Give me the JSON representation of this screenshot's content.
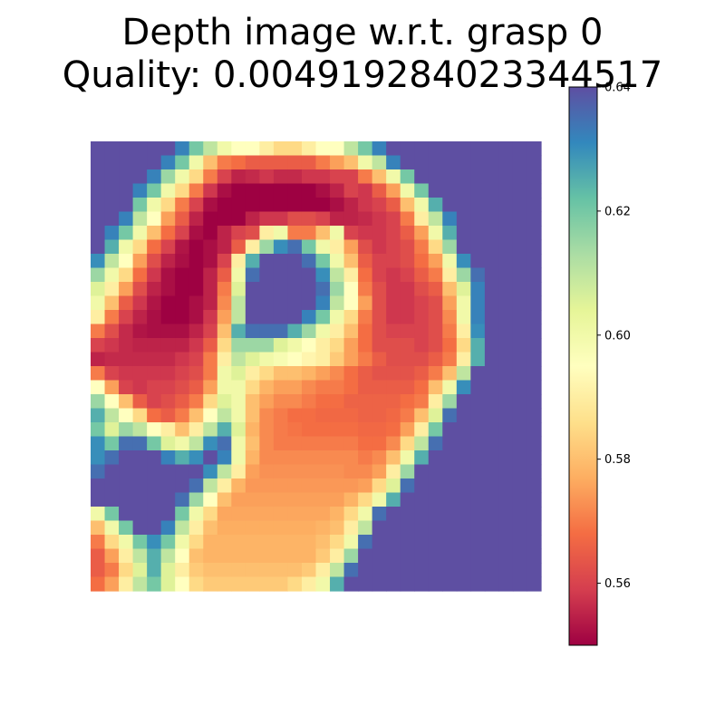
{
  "title_line_1": "Depth image w.r.t. grasp 0",
  "title_line_2": "Quality: 0.004919284023344517",
  "chart_data": {
    "type": "heatmap",
    "title": "Depth image w.r.t. grasp 0\nQuality: 0.004919284023344517",
    "colormap": "Spectral",
    "axes_visible": false,
    "grid": false,
    "vmin": 0.55,
    "vmax": 0.64,
    "colorbar": {
      "ticks": [
        0.56,
        0.58,
        0.6,
        0.62,
        0.64
      ],
      "tick_labels": [
        "0.56",
        "0.58",
        "0.60",
        "0.62",
        "0.64"
      ]
    },
    "rows": 32,
    "cols": 32,
    "values": [
      [
        0.64,
        0.64,
        0.64,
        0.64,
        0.64,
        0.64,
        0.632,
        0.62,
        0.61,
        0.6,
        0.595,
        0.595,
        0.59,
        0.585,
        0.585,
        0.59,
        0.595,
        0.595,
        0.61,
        0.62,
        0.632,
        0.64,
        0.64,
        0.64,
        0.64,
        0.64,
        0.64,
        0.64,
        0.64,
        0.64,
        0.64,
        0.64
      ],
      [
        0.64,
        0.64,
        0.64,
        0.64,
        0.64,
        0.632,
        0.62,
        0.6,
        0.58,
        0.57,
        0.568,
        0.565,
        0.565,
        0.565,
        0.565,
        0.565,
        0.57,
        0.575,
        0.58,
        0.6,
        0.61,
        0.632,
        0.64,
        0.64,
        0.64,
        0.64,
        0.64,
        0.64,
        0.64,
        0.64,
        0.64,
        0.64
      ],
      [
        0.64,
        0.64,
        0.64,
        0.64,
        0.632,
        0.615,
        0.6,
        0.585,
        0.57,
        0.56,
        0.555,
        0.556,
        0.558,
        0.556,
        0.556,
        0.558,
        0.558,
        0.56,
        0.56,
        0.57,
        0.58,
        0.6,
        0.62,
        0.64,
        0.64,
        0.64,
        0.64,
        0.64,
        0.64,
        0.64,
        0.64,
        0.64
      ],
      [
        0.64,
        0.64,
        0.64,
        0.632,
        0.62,
        0.6,
        0.585,
        0.57,
        0.558,
        0.552,
        0.55,
        0.55,
        0.55,
        0.55,
        0.55,
        0.55,
        0.552,
        0.555,
        0.56,
        0.558,
        0.565,
        0.575,
        0.6,
        0.62,
        0.64,
        0.64,
        0.64,
        0.64,
        0.64,
        0.64,
        0.64,
        0.64
      ],
      [
        0.64,
        0.64,
        0.64,
        0.62,
        0.6,
        0.585,
        0.57,
        0.56,
        0.552,
        0.55,
        0.55,
        0.55,
        0.55,
        0.55,
        0.55,
        0.55,
        0.55,
        0.552,
        0.555,
        0.558,
        0.56,
        0.565,
        0.58,
        0.6,
        0.625,
        0.64,
        0.64,
        0.64,
        0.64,
        0.64,
        0.64,
        0.64
      ],
      [
        0.64,
        0.64,
        0.632,
        0.61,
        0.595,
        0.575,
        0.565,
        0.555,
        0.55,
        0.55,
        0.55,
        0.555,
        0.558,
        0.558,
        0.562,
        0.562,
        0.56,
        0.555,
        0.555,
        0.556,
        0.558,
        0.56,
        0.57,
        0.59,
        0.61,
        0.632,
        0.64,
        0.64,
        0.64,
        0.64,
        0.64,
        0.64
      ],
      [
        0.64,
        0.632,
        0.62,
        0.6,
        0.58,
        0.568,
        0.56,
        0.552,
        0.55,
        0.555,
        0.56,
        0.562,
        0.59,
        0.6,
        0.57,
        0.57,
        0.58,
        0.6,
        0.56,
        0.558,
        0.558,
        0.56,
        0.565,
        0.575,
        0.6,
        0.625,
        0.64,
        0.64,
        0.64,
        0.64,
        0.64,
        0.64
      ],
      [
        0.64,
        0.625,
        0.6,
        0.585,
        0.568,
        0.56,
        0.553,
        0.55,
        0.552,
        0.555,
        0.565,
        0.59,
        0.615,
        0.63,
        0.635,
        0.62,
        0.6,
        0.59,
        0.575,
        0.562,
        0.558,
        0.56,
        0.562,
        0.57,
        0.585,
        0.615,
        0.64,
        0.64,
        0.64,
        0.64,
        0.64,
        0.64
      ],
      [
        0.63,
        0.61,
        0.595,
        0.575,
        0.562,
        0.555,
        0.552,
        0.55,
        0.552,
        0.56,
        0.59,
        0.625,
        0.64,
        0.64,
        0.64,
        0.635,
        0.62,
        0.6,
        0.58,
        0.565,
        0.56,
        0.56,
        0.562,
        0.568,
        0.575,
        0.6,
        0.63,
        0.64,
        0.64,
        0.64,
        0.64,
        0.64
      ],
      [
        0.615,
        0.6,
        0.585,
        0.568,
        0.558,
        0.552,
        0.55,
        0.55,
        0.555,
        0.565,
        0.6,
        0.635,
        0.64,
        0.64,
        0.64,
        0.64,
        0.63,
        0.61,
        0.59,
        0.568,
        0.56,
        0.558,
        0.56,
        0.565,
        0.57,
        0.59,
        0.615,
        0.635,
        0.64,
        0.64,
        0.64,
        0.64
      ],
      [
        0.605,
        0.59,
        0.575,
        0.562,
        0.555,
        0.552,
        0.55,
        0.55,
        0.555,
        0.57,
        0.605,
        0.64,
        0.64,
        0.64,
        0.64,
        0.64,
        0.635,
        0.615,
        0.595,
        0.57,
        0.562,
        0.558,
        0.558,
        0.562,
        0.565,
        0.58,
        0.605,
        0.632,
        0.64,
        0.64,
        0.64,
        0.64
      ],
      [
        0.6,
        0.58,
        0.565,
        0.558,
        0.553,
        0.55,
        0.55,
        0.552,
        0.555,
        0.572,
        0.61,
        0.64,
        0.64,
        0.64,
        0.64,
        0.64,
        0.632,
        0.61,
        0.595,
        0.575,
        0.562,
        0.558,
        0.558,
        0.56,
        0.562,
        0.575,
        0.6,
        0.632,
        0.64,
        0.64,
        0.64,
        0.64
      ],
      [
        0.59,
        0.57,
        0.56,
        0.555,
        0.552,
        0.55,
        0.55,
        0.552,
        0.558,
        0.575,
        0.61,
        0.64,
        0.64,
        0.64,
        0.64,
        0.632,
        0.62,
        0.6,
        0.585,
        0.57,
        0.562,
        0.558,
        0.558,
        0.56,
        0.562,
        0.572,
        0.6,
        0.632,
        0.64,
        0.64,
        0.64,
        0.64
      ],
      [
        0.57,
        0.562,
        0.556,
        0.553,
        0.552,
        0.552,
        0.552,
        0.555,
        0.56,
        0.58,
        0.625,
        0.635,
        0.635,
        0.635,
        0.625,
        0.615,
        0.6,
        0.59,
        0.58,
        0.568,
        0.562,
        0.56,
        0.56,
        0.56,
        0.562,
        0.57,
        0.59,
        0.63,
        0.64,
        0.64,
        0.64,
        0.64
      ],
      [
        0.56,
        0.558,
        0.556,
        0.555,
        0.555,
        0.555,
        0.555,
        0.558,
        0.565,
        0.585,
        0.615,
        0.615,
        0.615,
        0.605,
        0.6,
        0.595,
        0.59,
        0.585,
        0.575,
        0.568,
        0.562,
        0.562,
        0.562,
        0.56,
        0.562,
        0.568,
        0.585,
        0.625,
        0.64,
        0.64,
        0.64,
        0.64
      ],
      [
        0.555,
        0.556,
        0.556,
        0.556,
        0.556,
        0.556,
        0.558,
        0.56,
        0.57,
        0.59,
        0.61,
        0.605,
        0.6,
        0.598,
        0.595,
        0.592,
        0.59,
        0.582,
        0.575,
        0.57,
        0.565,
        0.562,
        0.562,
        0.562,
        0.565,
        0.57,
        0.59,
        0.625,
        0.64,
        0.64,
        0.64,
        0.64
      ],
      [
        0.57,
        0.56,
        0.558,
        0.558,
        0.558,
        0.558,
        0.56,
        0.562,
        0.57,
        0.6,
        0.605,
        0.59,
        0.585,
        0.58,
        0.58,
        0.578,
        0.575,
        0.572,
        0.568,
        0.565,
        0.563,
        0.563,
        0.563,
        0.565,
        0.57,
        0.58,
        0.61,
        0.64,
        0.64,
        0.64,
        0.64,
        0.64
      ],
      [
        0.595,
        0.575,
        0.56,
        0.558,
        0.56,
        0.56,
        0.562,
        0.565,
        0.575,
        0.6,
        0.6,
        0.585,
        0.578,
        0.575,
        0.575,
        0.572,
        0.57,
        0.57,
        0.568,
        0.565,
        0.565,
        0.565,
        0.565,
        0.568,
        0.58,
        0.6,
        0.63,
        0.64,
        0.64,
        0.64,
        0.64,
        0.64
      ],
      [
        0.615,
        0.595,
        0.58,
        0.565,
        0.56,
        0.562,
        0.565,
        0.57,
        0.585,
        0.605,
        0.6,
        0.58,
        0.575,
        0.572,
        0.572,
        0.57,
        0.568,
        0.568,
        0.566,
        0.566,
        0.566,
        0.566,
        0.568,
        0.57,
        0.59,
        0.615,
        0.64,
        0.64,
        0.64,
        0.64,
        0.64,
        0.64
      ],
      [
        0.625,
        0.61,
        0.595,
        0.585,
        0.568,
        0.565,
        0.57,
        0.58,
        0.595,
        0.61,
        0.6,
        0.58,
        0.572,
        0.57,
        0.568,
        0.568,
        0.567,
        0.567,
        0.567,
        0.566,
        0.566,
        0.567,
        0.57,
        0.58,
        0.605,
        0.635,
        0.64,
        0.64,
        0.64,
        0.64,
        0.64,
        0.64
      ],
      [
        0.62,
        0.605,
        0.615,
        0.61,
        0.595,
        0.59,
        0.58,
        0.59,
        0.61,
        0.625,
        0.605,
        0.578,
        0.572,
        0.57,
        0.569,
        0.568,
        0.568,
        0.568,
        0.568,
        0.567,
        0.567,
        0.568,
        0.575,
        0.59,
        0.62,
        0.64,
        0.64,
        0.64,
        0.64,
        0.64,
        0.64,
        0.64
      ],
      [
        0.63,
        0.62,
        0.635,
        0.635,
        0.62,
        0.605,
        0.6,
        0.61,
        0.63,
        0.635,
        0.6,
        0.58,
        0.572,
        0.57,
        0.57,
        0.57,
        0.57,
        0.57,
        0.57,
        0.568,
        0.568,
        0.572,
        0.585,
        0.61,
        0.635,
        0.64,
        0.64,
        0.64,
        0.64,
        0.64,
        0.64,
        0.64
      ],
      [
        0.63,
        0.635,
        0.64,
        0.64,
        0.64,
        0.632,
        0.625,
        0.63,
        0.64,
        0.632,
        0.6,
        0.578,
        0.572,
        0.572,
        0.572,
        0.572,
        0.572,
        0.572,
        0.572,
        0.57,
        0.572,
        0.58,
        0.6,
        0.625,
        0.64,
        0.64,
        0.64,
        0.64,
        0.64,
        0.64,
        0.64,
        0.64
      ],
      [
        0.635,
        0.64,
        0.64,
        0.64,
        0.64,
        0.64,
        0.64,
        0.64,
        0.63,
        0.61,
        0.59,
        0.575,
        0.573,
        0.573,
        0.573,
        0.573,
        0.573,
        0.573,
        0.572,
        0.572,
        0.575,
        0.59,
        0.615,
        0.64,
        0.64,
        0.64,
        0.64,
        0.64,
        0.64,
        0.64,
        0.64,
        0.64
      ],
      [
        0.64,
        0.64,
        0.64,
        0.64,
        0.64,
        0.64,
        0.64,
        0.635,
        0.61,
        0.59,
        0.578,
        0.574,
        0.574,
        0.574,
        0.574,
        0.574,
        0.574,
        0.574,
        0.574,
        0.575,
        0.585,
        0.605,
        0.635,
        0.64,
        0.64,
        0.64,
        0.64,
        0.64,
        0.64,
        0.64,
        0.64,
        0.64
      ],
      [
        0.64,
        0.64,
        0.64,
        0.64,
        0.64,
        0.64,
        0.635,
        0.615,
        0.595,
        0.58,
        0.575,
        0.575,
        0.575,
        0.575,
        0.575,
        0.575,
        0.575,
        0.575,
        0.578,
        0.585,
        0.6,
        0.625,
        0.64,
        0.64,
        0.64,
        0.64,
        0.64,
        0.64,
        0.64,
        0.64,
        0.64,
        0.64
      ],
      [
        0.6,
        0.62,
        0.64,
        0.64,
        0.64,
        0.64,
        0.62,
        0.6,
        0.585,
        0.576,
        0.576,
        0.576,
        0.576,
        0.576,
        0.576,
        0.576,
        0.576,
        0.578,
        0.585,
        0.6,
        0.635,
        0.64,
        0.64,
        0.64,
        0.64,
        0.64,
        0.64,
        0.64,
        0.64,
        0.64,
        0.64,
        0.64
      ],
      [
        0.58,
        0.6,
        0.62,
        0.64,
        0.64,
        0.632,
        0.61,
        0.59,
        0.58,
        0.577,
        0.577,
        0.577,
        0.577,
        0.577,
        0.577,
        0.577,
        0.578,
        0.58,
        0.59,
        0.61,
        0.64,
        0.64,
        0.64,
        0.64,
        0.64,
        0.64,
        0.64,
        0.64,
        0.64,
        0.64,
        0.64,
        0.64
      ],
      [
        0.57,
        0.585,
        0.6,
        0.62,
        0.63,
        0.62,
        0.6,
        0.585,
        0.578,
        0.578,
        0.578,
        0.578,
        0.578,
        0.578,
        0.578,
        0.578,
        0.58,
        0.585,
        0.6,
        0.635,
        0.64,
        0.64,
        0.64,
        0.64,
        0.64,
        0.64,
        0.64,
        0.64,
        0.64,
        0.64,
        0.64,
        0.64
      ],
      [
        0.565,
        0.575,
        0.59,
        0.61,
        0.625,
        0.61,
        0.595,
        0.58,
        0.578,
        0.578,
        0.578,
        0.578,
        0.578,
        0.578,
        0.578,
        0.578,
        0.582,
        0.59,
        0.615,
        0.64,
        0.64,
        0.64,
        0.64,
        0.64,
        0.64,
        0.64,
        0.64,
        0.64,
        0.64,
        0.64,
        0.64,
        0.64
      ],
      [
        0.565,
        0.57,
        0.585,
        0.605,
        0.625,
        0.605,
        0.59,
        0.582,
        0.58,
        0.58,
        0.58,
        0.58,
        0.58,
        0.58,
        0.58,
        0.582,
        0.59,
        0.61,
        0.635,
        0.64,
        0.64,
        0.64,
        0.64,
        0.64,
        0.64,
        0.64,
        0.64,
        0.64,
        0.64,
        0.64,
        0.64,
        0.64
      ],
      [
        0.568,
        0.575,
        0.59,
        0.61,
        0.62,
        0.605,
        0.595,
        0.585,
        0.582,
        0.582,
        0.582,
        0.582,
        0.582,
        0.582,
        0.585,
        0.59,
        0.6,
        0.625,
        0.64,
        0.64,
        0.64,
        0.64,
        0.64,
        0.64,
        0.64,
        0.64,
        0.64,
        0.64,
        0.64,
        0.64,
        0.64,
        0.64
      ]
    ]
  }
}
